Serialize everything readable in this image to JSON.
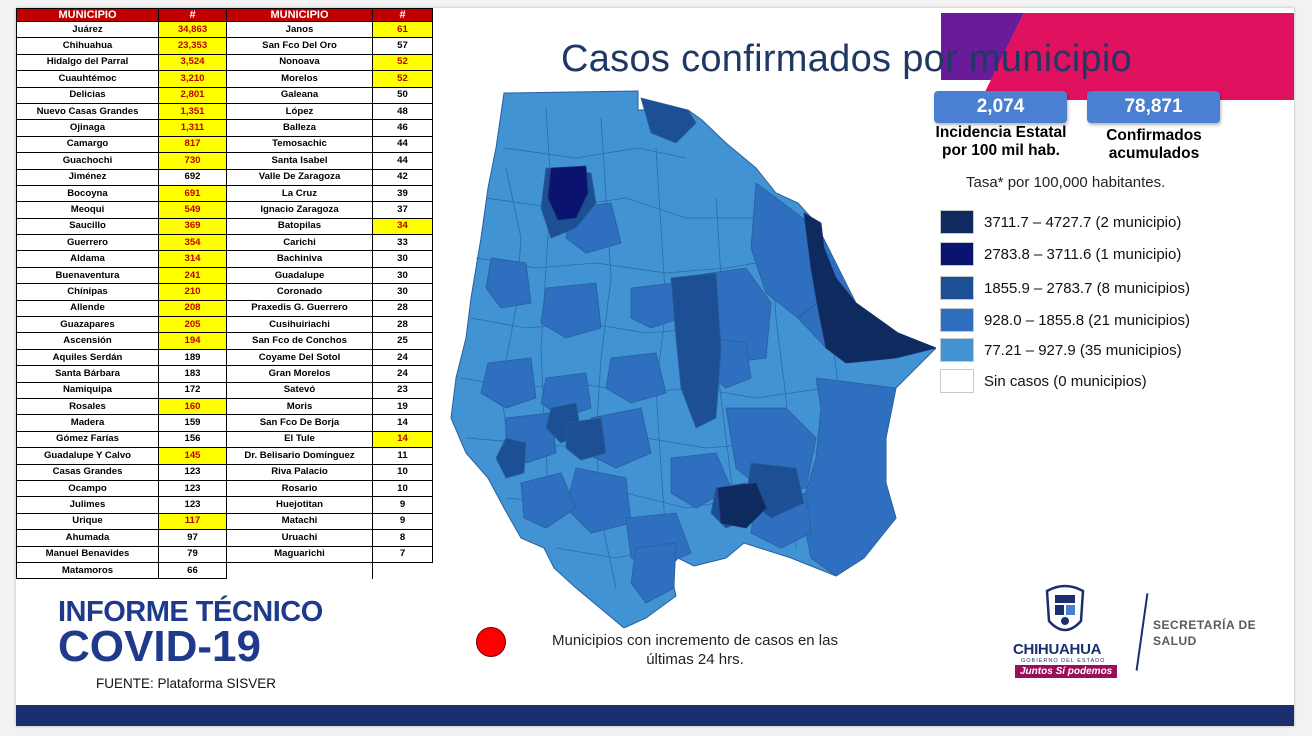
{
  "table": {
    "headers": [
      "MUNICIPIO",
      "#",
      "MUNICIPIO",
      "#"
    ],
    "rows": [
      [
        {
          "name": "Juárez",
          "value": "34,863",
          "hl": true
        },
        {
          "name": "Janos",
          "value": "61",
          "hl": true
        }
      ],
      [
        {
          "name": "Chihuahua",
          "value": "23,353",
          "hl": true
        },
        {
          "name": "San Fco Del Oro",
          "value": "57",
          "hl": false
        }
      ],
      [
        {
          "name": "Hidalgo del Parral",
          "value": "3,524",
          "hl": true
        },
        {
          "name": "Nonoava",
          "value": "52",
          "hl": true
        }
      ],
      [
        {
          "name": "Cuauhtémoc",
          "value": "3,210",
          "hl": true
        },
        {
          "name": "Morelos",
          "value": "52",
          "hl": true
        }
      ],
      [
        {
          "name": "Delicias",
          "value": "2,801",
          "hl": true
        },
        {
          "name": "Galeana",
          "value": "50",
          "hl": false
        }
      ],
      [
        {
          "name": "Nuevo Casas Grandes",
          "value": "1,351",
          "hl": true
        },
        {
          "name": "López",
          "value": "48",
          "hl": false
        }
      ],
      [
        {
          "name": "Ojinaga",
          "value": "1,311",
          "hl": true
        },
        {
          "name": "Balleza",
          "value": "46",
          "hl": false
        }
      ],
      [
        {
          "name": "Camargo",
          "value": "817",
          "hl": true
        },
        {
          "name": "Temosachic",
          "value": "44",
          "hl": false
        }
      ],
      [
        {
          "name": "Guachochi",
          "value": "730",
          "hl": true
        },
        {
          "name": "Santa Isabel",
          "value": "44",
          "hl": false
        }
      ],
      [
        {
          "name": "Jiménez",
          "value": "692",
          "hl": false
        },
        {
          "name": "Valle De Zaragoza",
          "value": "42",
          "hl": false
        }
      ],
      [
        {
          "name": "Bocoyna",
          "value": "691",
          "hl": true
        },
        {
          "name": "La Cruz",
          "value": "39",
          "hl": false
        }
      ],
      [
        {
          "name": "Meoqui",
          "value": "549",
          "hl": true
        },
        {
          "name": "Ignacio Zaragoza",
          "value": "37",
          "hl": false
        }
      ],
      [
        {
          "name": "Saucillo",
          "value": "369",
          "hl": true
        },
        {
          "name": "Batopilas",
          "value": "34",
          "hl": true
        }
      ],
      [
        {
          "name": "Guerrero",
          "value": "354",
          "hl": true
        },
        {
          "name": "Carichi",
          "value": "33",
          "hl": false
        }
      ],
      [
        {
          "name": "Aldama",
          "value": "314",
          "hl": true
        },
        {
          "name": "Bachiniva",
          "value": "30",
          "hl": false
        }
      ],
      [
        {
          "name": "Buenaventura",
          "value": "241",
          "hl": true
        },
        {
          "name": "Guadalupe",
          "value": "30",
          "hl": false
        }
      ],
      [
        {
          "name": "Chínipas",
          "value": "210",
          "hl": true
        },
        {
          "name": "Coronado",
          "value": "30",
          "hl": false
        }
      ],
      [
        {
          "name": "Allende",
          "value": "208",
          "hl": true
        },
        {
          "name": "Praxedis G. Guerrero",
          "value": "28",
          "hl": false
        }
      ],
      [
        {
          "name": "Guazapares",
          "value": "205",
          "hl": true
        },
        {
          "name": "Cusihuiriachi",
          "value": "28",
          "hl": false
        }
      ],
      [
        {
          "name": "Ascensión",
          "value": "194",
          "hl": true
        },
        {
          "name": "San Fco de Conchos",
          "value": "25",
          "hl": false
        }
      ],
      [
        {
          "name": "Aquiles Serdán",
          "value": "189",
          "hl": false
        },
        {
          "name": "Coyame Del Sotol",
          "value": "24",
          "hl": false
        }
      ],
      [
        {
          "name": "Santa Bárbara",
          "value": "183",
          "hl": false
        },
        {
          "name": "Gran Morelos",
          "value": "24",
          "hl": false
        }
      ],
      [
        {
          "name": "Namiquipa",
          "value": "172",
          "hl": false
        },
        {
          "name": "Satevó",
          "value": "23",
          "hl": false
        }
      ],
      [
        {
          "name": "Rosales",
          "value": "160",
          "hl": true
        },
        {
          "name": "Moris",
          "value": "19",
          "hl": false
        }
      ],
      [
        {
          "name": "Madera",
          "value": "159",
          "hl": false
        },
        {
          "name": "San Fco De Borja",
          "value": "14",
          "hl": false
        }
      ],
      [
        {
          "name": "Gómez Farías",
          "value": "156",
          "hl": false
        },
        {
          "name": "El Tule",
          "value": "14",
          "hl": true
        }
      ],
      [
        {
          "name": "Guadalupe Y Calvo",
          "value": "145",
          "hl": true
        },
        {
          "name": "Dr. Belisario Domínguez",
          "value": "11",
          "hl": false
        }
      ],
      [
        {
          "name": "Casas Grandes",
          "value": "123",
          "hl": false
        },
        {
          "name": "Riva Palacio",
          "value": "10",
          "hl": false
        }
      ],
      [
        {
          "name": "Ocampo",
          "value": "123",
          "hl": false
        },
        {
          "name": "Rosario",
          "value": "10",
          "hl": false
        }
      ],
      [
        {
          "name": "Julimes",
          "value": "123",
          "hl": false
        },
        {
          "name": "Huejotitan",
          "value": "9",
          "hl": false
        }
      ],
      [
        {
          "name": "Urique",
          "value": "117",
          "hl": true
        },
        {
          "name": "Matachi",
          "value": "9",
          "hl": false
        }
      ],
      [
        {
          "name": "Ahumada",
          "value": "97",
          "hl": false
        },
        {
          "name": "Uruachi",
          "value": "8",
          "hl": false
        }
      ],
      [
        {
          "name": "Manuel Benavides",
          "value": "79",
          "hl": false
        },
        {
          "name": "Maguarichi",
          "value": "7",
          "hl": false
        }
      ],
      [
        {
          "name": "Matamoros",
          "value": "66",
          "hl": false
        },
        null
      ]
    ]
  },
  "title": "Casos confirmados por municipio",
  "stats": [
    {
      "value": "2,074",
      "label_line1": "Incidencia Estatal",
      "label_line2": "por 100 mil hab."
    },
    {
      "value": "78,871",
      "label_line1": "Confirmados",
      "label_line2": "acumulados"
    }
  ],
  "tasa_note": "Tasa* por 100,000 habitantes.",
  "legend": [
    {
      "label": "3711.7 – 4727.7 (2 municipio)",
      "color": "#0f2a5e"
    },
    {
      "label": "2783.8  – 3711.6 (1 municipio)",
      "color": "#0a1470"
    },
    {
      "label": "1855.9 – 2783.7 (8 municipios)",
      "color": "#1c4f93"
    },
    {
      "label": "928.0 – 1855.8 (21 municipios)",
      "color": "#2e6fc0"
    },
    {
      "label": " 77.21 – 927.9 (35 municipios)",
      "color": "#4193d4"
    },
    {
      "label": "Sin casos (0 municipios)",
      "color": "#ffffff"
    }
  ],
  "marker_note": {
    "line1": "Municipios con incremento de casos en las",
    "line2": "últimas 24 hrs.",
    "color": "#ff0000"
  },
  "report": {
    "line1": "INFORME TÉCNICO",
    "line2": "COVID-19"
  },
  "fuente": "FUENTE: Plataforma SISVER",
  "logo": {
    "name": "CHIHUAHUA",
    "sub": "GOBIERNO DEL ESTADO",
    "slogan_a": "Juntos",
    "slogan_b": "Sí podemos",
    "dept_line1": "SECRETARÍA DE",
    "dept_line2": "SALUD"
  },
  "colors": {
    "accent_purple": "#6a1b9a",
    "accent_magenta": "#e0115f",
    "footer": "#1b2f6e",
    "title": "#1f3864"
  }
}
